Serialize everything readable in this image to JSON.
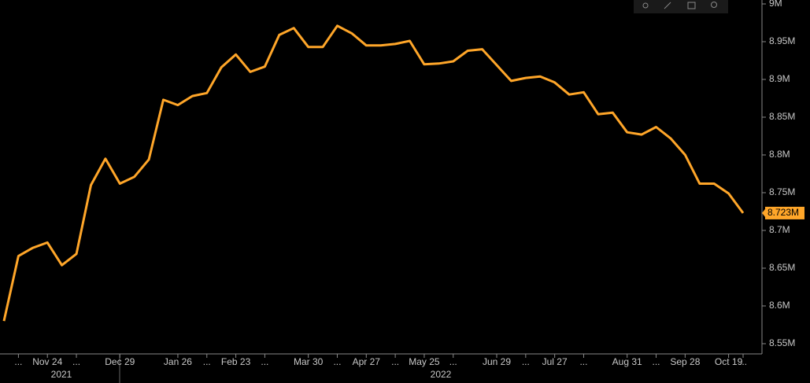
{
  "chart_data": {
    "type": "line",
    "categories": [
      null,
      "...",
      null,
      "Nov 24",
      null,
      "...",
      null,
      null,
      "Dec 29",
      null,
      null,
      null,
      "Jan 26",
      null,
      "...",
      null,
      "Feb 23",
      null,
      "...",
      null,
      null,
      "Mar 30",
      null,
      "...",
      null,
      "Apr 27",
      null,
      "...",
      null,
      "May 25",
      null,
      "...",
      null,
      null,
      "Jun 29",
      null,
      "...",
      null,
      "Jul 27",
      null,
      "...",
      null,
      null,
      "Aug 31",
      null,
      "...",
      null,
      "Sep 28",
      null,
      null,
      "Oct 19",
      "..."
    ],
    "year_labels": [
      "2021",
      "2022"
    ],
    "series": [
      {
        "color": "#ffa629",
        "values": [
          8.58,
          8.666,
          8.677,
          8.684,
          8.654,
          8.669,
          8.76,
          8.795,
          8.762,
          8.771,
          8.794,
          8.873,
          8.866,
          8.878,
          8.882,
          8.916,
          8.933,
          8.91,
          8.917,
          8.959,
          8.968,
          8.943,
          8.943,
          8.971,
          8.961,
          8.945,
          8.945,
          8.947,
          8.951,
          8.92,
          8.921,
          8.924,
          8.938,
          8.94,
          8.919,
          8.898,
          8.902,
          8.904,
          8.896,
          8.88,
          8.883,
          8.854,
          8.856,
          8.83,
          8.827,
          8.837,
          8.822,
          8.8,
          8.762,
          8.762,
          8.749,
          8.723
        ],
        "last_value_label": "8.723M"
      }
    ],
    "ylim": [
      8.55,
      9
    ],
    "yticks": [
      {
        "value": 8.55,
        "label": "8.55M"
      },
      {
        "value": 8.6,
        "label": "8.6M"
      },
      {
        "value": 8.65,
        "label": "8.65M"
      },
      {
        "value": 8.7,
        "label": "8.7M"
      },
      {
        "value": 8.75,
        "label": "8.75M"
      },
      {
        "value": 8.8,
        "label": "8.8M"
      },
      {
        "value": 8.85,
        "label": "8.85M"
      },
      {
        "value": 8.9,
        "label": "8.9M"
      },
      {
        "value": 8.95,
        "label": "8.95M"
      },
      {
        "value": 9,
        "label": "9M"
      }
    ]
  }
}
